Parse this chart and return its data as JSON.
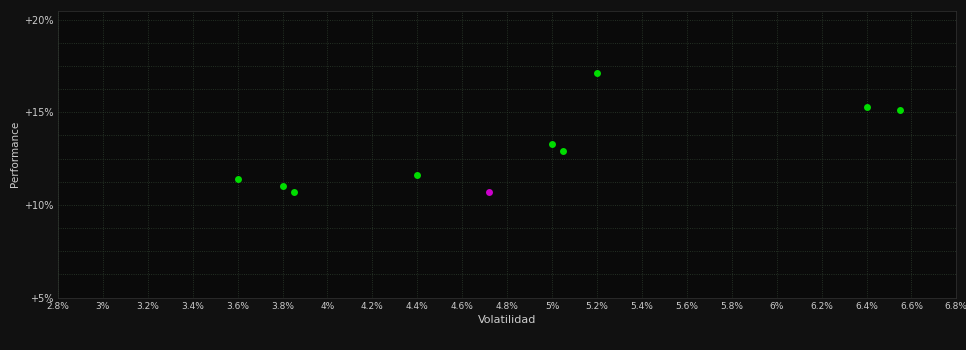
{
  "xlabel": "Volatilidad",
  "ylabel": "Performance",
  "background_color": "#111111",
  "plot_bg_color": "#0a0a0a",
  "grid_color": "#2d3d2d",
  "text_color": "#cccccc",
  "xlim": [
    0.028,
    0.068
  ],
  "ylim": [
    0.05,
    0.205
  ],
  "xticks": [
    0.028,
    0.03,
    0.032,
    0.034,
    0.036,
    0.038,
    0.04,
    0.042,
    0.044,
    0.046,
    0.048,
    0.05,
    0.052,
    0.054,
    0.056,
    0.058,
    0.06,
    0.062,
    0.064,
    0.066,
    0.068
  ],
  "yticks": [
    0.05,
    0.1,
    0.15,
    0.2
  ],
  "ytick_labels": [
    "+5%",
    "+10%",
    "+15%",
    "+20%"
  ],
  "xtick_labels": [
    "2.8%",
    "3%",
    "3.2%",
    "3.4%",
    "3.6%",
    "3.8%",
    "4%",
    "4.2%",
    "4.4%",
    "4.6%",
    "4.8%",
    "5%",
    "5.2%",
    "5.4%",
    "5.6%",
    "5.8%",
    "6%",
    "6.2%",
    "6.4%",
    "6.6%",
    "6.8%"
  ],
  "minor_yticks": [
    0.05,
    0.0625,
    0.075,
    0.0875,
    0.1,
    0.1125,
    0.125,
    0.1375,
    0.15,
    0.1625,
    0.175,
    0.1875,
    0.2
  ],
  "points_green": [
    [
      0.036,
      0.114
    ],
    [
      0.038,
      0.11
    ],
    [
      0.0385,
      0.107
    ],
    [
      0.044,
      0.116
    ],
    [
      0.05,
      0.133
    ],
    [
      0.0505,
      0.129
    ],
    [
      0.052,
      0.171
    ],
    [
      0.064,
      0.153
    ],
    [
      0.0655,
      0.151
    ]
  ],
  "points_purple": [
    [
      0.0472,
      0.107
    ]
  ],
  "marker_size": 25,
  "green_color": "#00dd00",
  "purple_color": "#cc00cc"
}
